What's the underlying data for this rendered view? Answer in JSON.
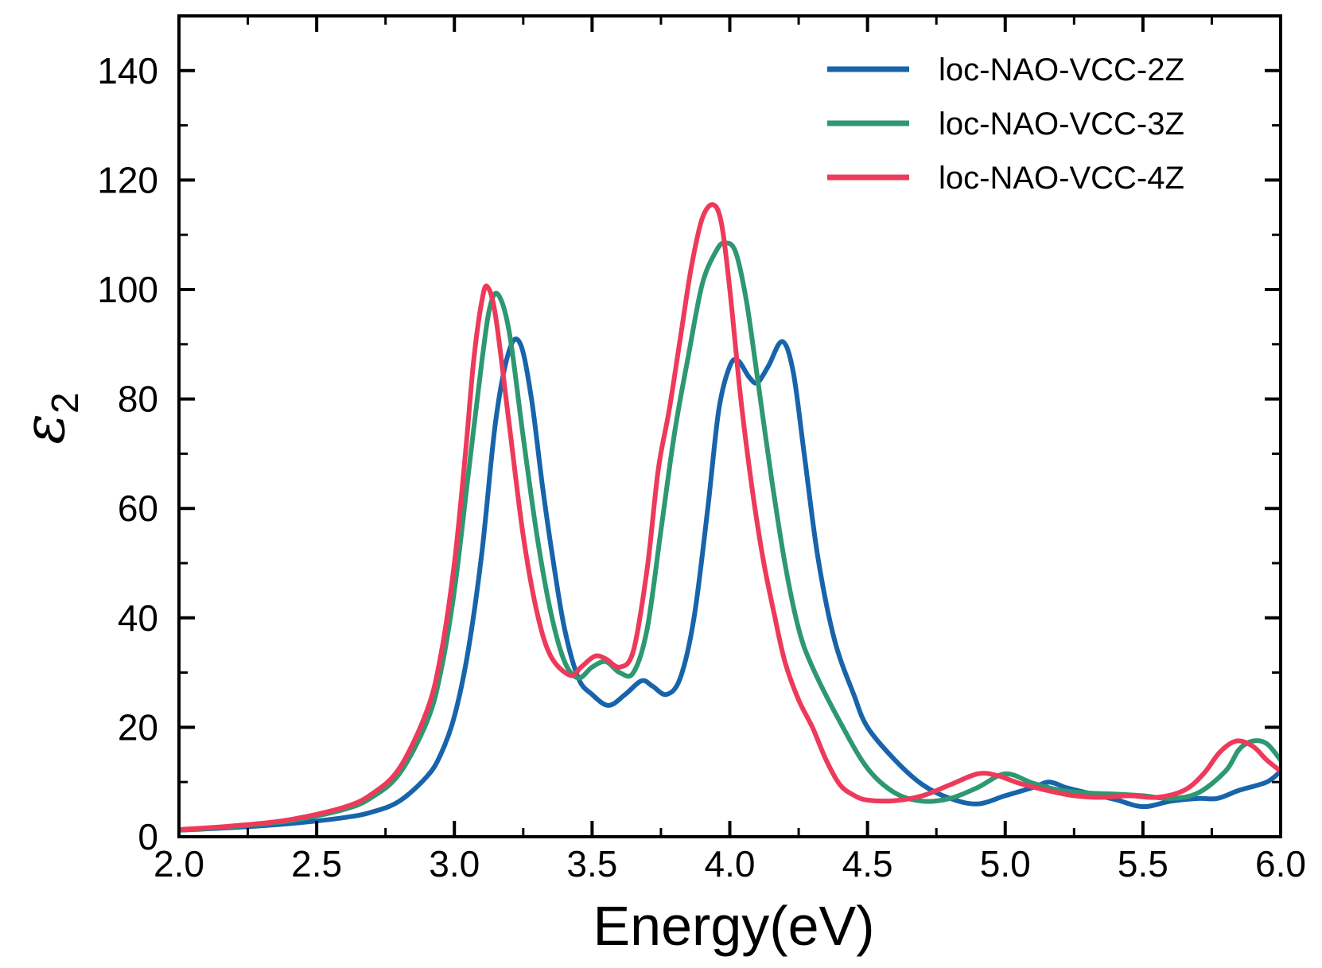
{
  "chart_data": {
    "type": "line",
    "title": "",
    "xlabel": "Energy(eV)",
    "ylabel": "ε",
    "ylabel_subscript": "2",
    "xlim": [
      2.0,
      6.0
    ],
    "ylim": [
      0,
      150
    ],
    "xticks": [
      2.0,
      2.5,
      3.0,
      3.5,
      4.0,
      4.5,
      5.0,
      5.5,
      6.0
    ],
    "xtick_labels": [
      "2.0",
      "2.5",
      "3.0",
      "3.5",
      "4.0",
      "4.5",
      "5.0",
      "5.5",
      "6.0"
    ],
    "yticks": [
      0,
      20,
      40,
      60,
      80,
      100,
      120,
      140
    ],
    "ytick_labels": [
      "0",
      "20",
      "40",
      "60",
      "80",
      "100",
      "120",
      "140"
    ],
    "grid": false,
    "legend_position": "top-right",
    "series": [
      {
        "name": "loc-NAO-VCC-2Z",
        "color": "#1764ab",
        "x": [
          2.0,
          2.2,
          2.4,
          2.6,
          2.7,
          2.8,
          2.9,
          2.95,
          3.0,
          3.05,
          3.1,
          3.15,
          3.2,
          3.24,
          3.28,
          3.32,
          3.36,
          3.4,
          3.45,
          3.5,
          3.56,
          3.62,
          3.68,
          3.72,
          3.77,
          3.82,
          3.87,
          3.92,
          3.96,
          4.0,
          4.03,
          4.07,
          4.1,
          4.14,
          4.19,
          4.23,
          4.27,
          4.32,
          4.38,
          4.45,
          4.5,
          4.6,
          4.7,
          4.8,
          4.9,
          5.0,
          5.1,
          5.16,
          5.22,
          5.3,
          5.4,
          5.5,
          5.6,
          5.7,
          5.77,
          5.85,
          5.95,
          6.0
        ],
        "values": [
          1.2,
          1.7,
          2.4,
          3.5,
          4.5,
          6.5,
          11,
          15,
          22,
          34,
          52,
          76,
          89,
          90,
          80,
          64,
          50,
          38,
          29,
          26,
          24,
          26,
          28.5,
          27.5,
          26,
          29,
          40,
          60,
          78,
          86,
          87,
          84,
          83,
          86,
          90.5,
          85,
          70,
          51,
          36,
          26,
          20,
          14,
          9.5,
          7,
          6,
          7.5,
          9,
          10,
          9,
          8,
          6.8,
          5.5,
          6.5,
          7,
          7,
          8.5,
          10,
          12
        ]
      },
      {
        "name": "loc-NAO-VCC-3Z",
        "color": "#2e9870",
        "x": [
          2.0,
          2.2,
          2.4,
          2.6,
          2.7,
          2.8,
          2.9,
          2.95,
          3.0,
          3.05,
          3.1,
          3.13,
          3.16,
          3.2,
          3.25,
          3.3,
          3.35,
          3.4,
          3.45,
          3.5,
          3.55,
          3.6,
          3.65,
          3.7,
          3.75,
          3.8,
          3.85,
          3.9,
          3.95,
          3.98,
          4.02,
          4.06,
          4.1,
          4.15,
          4.2,
          4.25,
          4.3,
          4.4,
          4.5,
          4.6,
          4.7,
          4.8,
          4.9,
          5.0,
          5.1,
          5.2,
          5.3,
          5.4,
          5.5,
          5.6,
          5.7,
          5.8,
          5.85,
          5.9,
          5.95,
          6.0
        ],
        "values": [
          1.2,
          1.9,
          2.9,
          5.0,
          7.2,
          11.5,
          21,
          30,
          45,
          66,
          87,
          97,
          99,
          92,
          73,
          55,
          41,
          32,
          29,
          31,
          32,
          30,
          30,
          38,
          56,
          74,
          88,
          101,
          107,
          108.5,
          107,
          98,
          84,
          66,
          50,
          38,
          31,
          21,
          12.5,
          8,
          6.5,
          7,
          9,
          11.5,
          9.8,
          8.5,
          8,
          7.8,
          7.5,
          7,
          8,
          12,
          16,
          17.5,
          17,
          14
        ]
      },
      {
        "name": "loc-NAO-VCC-4Z",
        "color": "#ee3a5a",
        "x": [
          2.0,
          2.2,
          2.4,
          2.6,
          2.7,
          2.8,
          2.9,
          2.95,
          3.0,
          3.04,
          3.07,
          3.1,
          3.12,
          3.15,
          3.2,
          3.25,
          3.3,
          3.35,
          3.42,
          3.46,
          3.51,
          3.55,
          3.6,
          3.65,
          3.7,
          3.74,
          3.78,
          3.82,
          3.86,
          3.9,
          3.94,
          3.97,
          4.0,
          4.04,
          4.08,
          4.12,
          4.16,
          4.2,
          4.25,
          4.3,
          4.35,
          4.4,
          4.45,
          4.5,
          4.6,
          4.7,
          4.8,
          4.9,
          4.97,
          5.05,
          5.15,
          5.25,
          5.35,
          5.45,
          5.55,
          5.65,
          5.72,
          5.78,
          5.84,
          5.9,
          5.95,
          6.0
        ],
        "values": [
          1.3,
          2.0,
          3.1,
          5.4,
          7.8,
          12.5,
          23,
          33,
          50,
          70,
          87,
          98,
          100.5,
          95,
          75,
          55,
          41,
          33,
          29.5,
          31,
          33,
          32.5,
          31,
          34,
          49,
          67,
          78,
          91,
          104,
          113,
          115.5,
          112,
          100,
          80,
          64,
          51,
          41,
          32,
          25,
          20,
          14,
          9.5,
          7.6,
          6.7,
          6.6,
          7.5,
          9.5,
          11.5,
          11.2,
          9.8,
          8.5,
          7.5,
          7.2,
          7.5,
          7.2,
          8.5,
          11.5,
          15.5,
          17.5,
          16.5,
          14,
          12
        ]
      }
    ]
  }
}
